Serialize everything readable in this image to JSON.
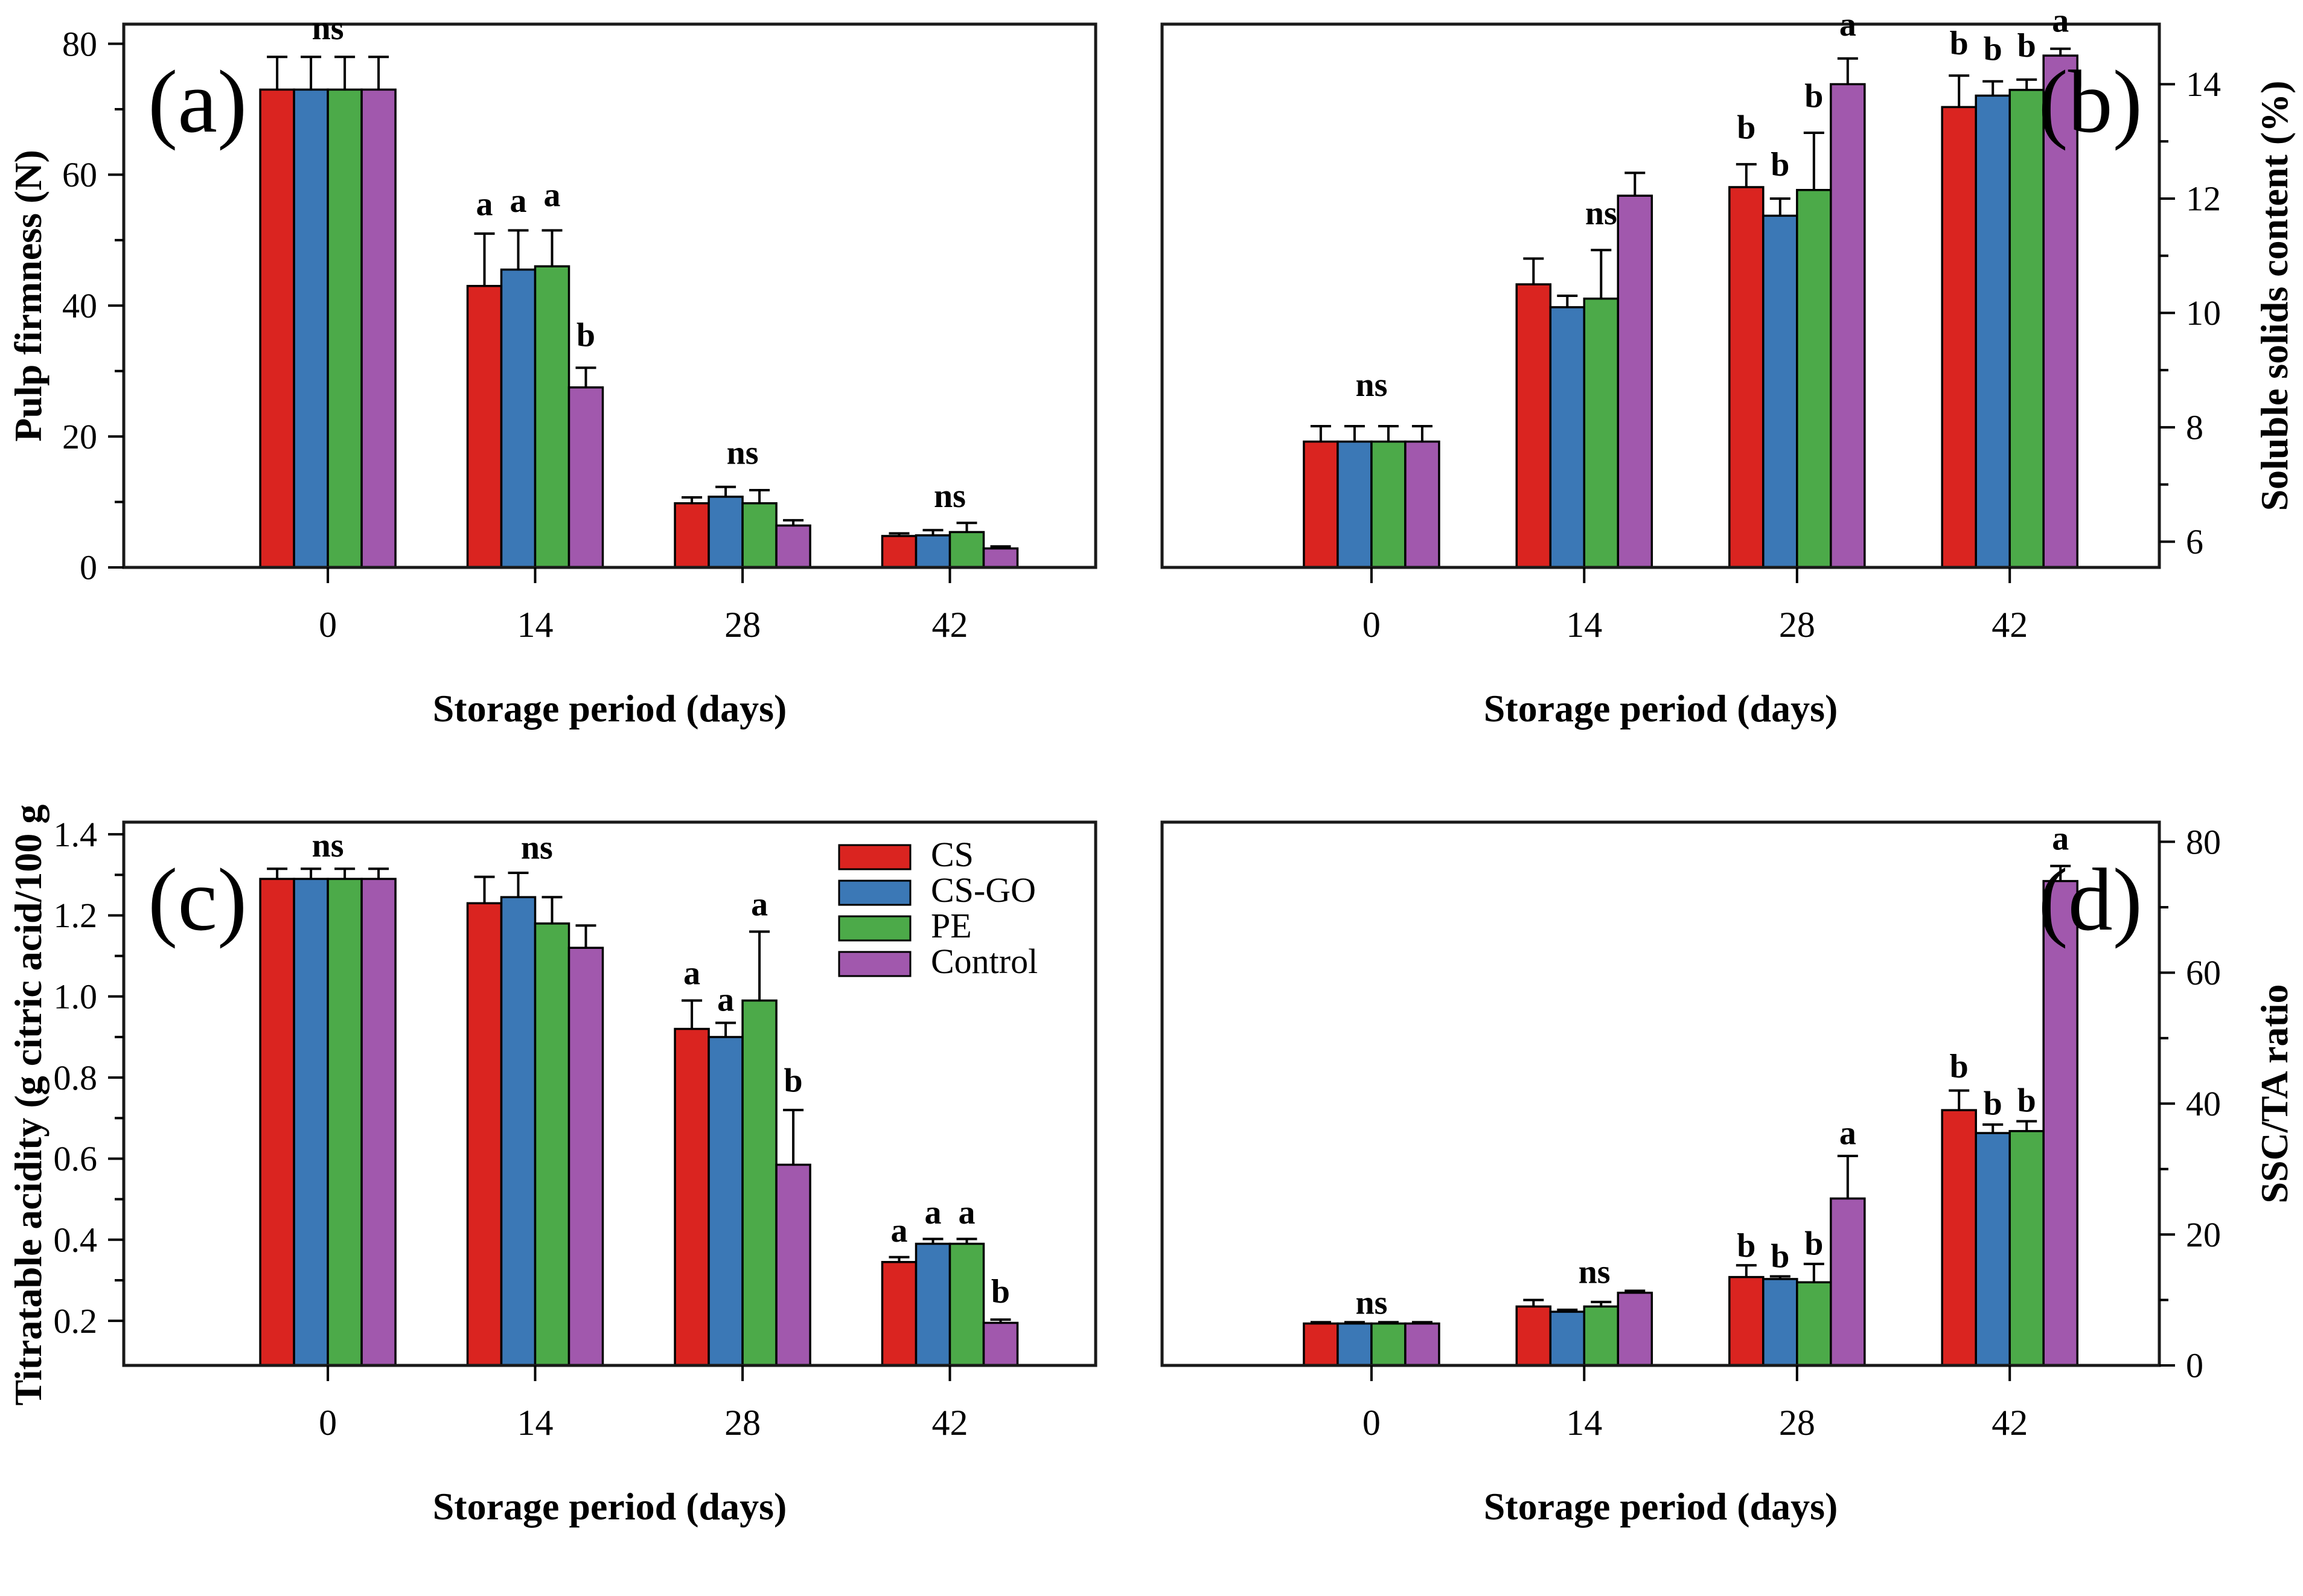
{
  "figure": {
    "background": "#ffffff",
    "frame_color": "#1a1a1a",
    "bar_edge_color": "#000000",
    "legend": {
      "items": [
        {
          "label": "CS",
          "color": "#da2420"
        },
        {
          "label": "CS-GO",
          "color": "#3b78b6"
        },
        {
          "label": "PE",
          "color": "#4caa49"
        },
        {
          "label": "Control",
          "color": "#a158ad"
        }
      ]
    }
  },
  "chart_data": [
    {
      "id": "a",
      "panel_label": "(a)",
      "type": "bar",
      "title": "",
      "xlabel": "Storage period (days)",
      "ylabel": "Pulp firmness (N)",
      "y_side": "left",
      "categories": [
        "0",
        "14",
        "28",
        "42"
      ],
      "ylim": [
        0,
        83
      ],
      "yticks": [
        0,
        20,
        40,
        60,
        80
      ],
      "ytick_labels": [
        "0",
        "20",
        "40",
        "60",
        "80"
      ],
      "yticks_minor": [
        10,
        30,
        50,
        70
      ],
      "grid": false,
      "series": [
        {
          "name": "CS",
          "values": [
            73,
            43,
            9.8,
            4.8
          ],
          "errors": [
            5,
            8,
            0.9,
            0.4
          ]
        },
        {
          "name": "CS-GO",
          "values": [
            73,
            45.5,
            10.8,
            4.9
          ],
          "errors": [
            5,
            6,
            1.5,
            0.8
          ]
        },
        {
          "name": "PE",
          "values": [
            73,
            46,
            9.8,
            5.4
          ],
          "errors": [
            5,
            5.5,
            2.0,
            1.4
          ]
        },
        {
          "name": "Control",
          "values": [
            73,
            27.5,
            6.4,
            2.9
          ],
          "errors": [
            5,
            3,
            0.8,
            0.3
          ]
        }
      ],
      "annotations": [
        {
          "text": "ns",
          "group": 0,
          "bar": 1.5,
          "y": 80.7
        },
        {
          "text": "a",
          "group": 1,
          "bar": 0,
          "y": 53.8
        },
        {
          "text": "a",
          "group": 1,
          "bar": 1,
          "y": 54.3
        },
        {
          "text": "a",
          "group": 1,
          "bar": 2,
          "y": 55.2
        },
        {
          "text": "b",
          "group": 1,
          "bar": 3,
          "y": 33.8
        },
        {
          "text": "ns",
          "group": 2,
          "bar": 1.5,
          "y": 15.8
        },
        {
          "text": "ns",
          "group": 3,
          "bar": 1.5,
          "y": 9.2
        }
      ],
      "show_legend": false
    },
    {
      "id": "b",
      "panel_label": "(b)",
      "type": "bar",
      "title": "",
      "xlabel": "Storage period (days)",
      "ylabel": "Soluble solids content (%)",
      "y_side": "right",
      "categories": [
        "0",
        "14",
        "28",
        "42"
      ],
      "ylim": [
        5.55,
        15.05
      ],
      "yticks": [
        6,
        8,
        10,
        12,
        14
      ],
      "ytick_labels": [
        "6",
        "8",
        "10",
        "12",
        "14"
      ],
      "yticks_minor": [
        7,
        9,
        11,
        13
      ],
      "grid": false,
      "series": [
        {
          "name": "CS",
          "values": [
            7.75,
            10.5,
            12.2,
            13.6
          ],
          "errors": [
            0.27,
            0.45,
            0.4,
            0.55
          ]
        },
        {
          "name": "CS-GO",
          "values": [
            7.75,
            10.1,
            11.7,
            13.8
          ],
          "errors": [
            0.27,
            0.2,
            0.3,
            0.25
          ]
        },
        {
          "name": "PE",
          "values": [
            7.75,
            10.25,
            12.15,
            13.9
          ],
          "errors": [
            0.27,
            0.85,
            1.0,
            0.18
          ]
        },
        {
          "name": "Control",
          "values": [
            7.75,
            12.05,
            14.0,
            14.5
          ],
          "errors": [
            0.27,
            0.4,
            0.45,
            0.12
          ]
        }
      ],
      "annotations": [
        {
          "text": "ns",
          "group": 0,
          "bar": 1.5,
          "y": 8.55
        },
        {
          "text": "ns",
          "group": 1,
          "bar": 2.0,
          "y": 11.55
        },
        {
          "text": "b",
          "group": 2,
          "bar": 0,
          "y": 13.05
        },
        {
          "text": "b",
          "group": 2,
          "bar": 1,
          "y": 12.4
        },
        {
          "text": "b",
          "group": 2,
          "bar": 2,
          "y": 13.6
        },
        {
          "text": "a",
          "group": 2,
          "bar": 3,
          "y": 14.85
        },
        {
          "text": "b",
          "group": 3,
          "bar": 0,
          "y": 14.52
        },
        {
          "text": "b",
          "group": 3,
          "bar": 1,
          "y": 14.42
        },
        {
          "text": "b",
          "group": 3,
          "bar": 2,
          "y": 14.48
        },
        {
          "text": "a",
          "group": 3,
          "bar": 3,
          "y": 14.92
        }
      ],
      "show_legend": false
    },
    {
      "id": "c",
      "panel_label": "(c)",
      "type": "bar",
      "title": "",
      "xlabel": "Storage period (days)",
      "ylabel": "Titratable acidity (g citric acid/100 g )",
      "y_side": "left",
      "categories": [
        "0",
        "14",
        "28",
        "42"
      ],
      "ylim": [
        0.09,
        1.43
      ],
      "yticks": [
        0.2,
        0.4,
        0.6,
        0.8,
        1.0,
        1.2,
        1.4
      ],
      "ytick_labels": [
        "0.2",
        "0.4",
        "0.6",
        "0.8",
        "1.0",
        "1.2",
        "1.4"
      ],
      "yticks_minor": [
        0.3,
        0.5,
        0.7,
        0.9,
        1.1,
        1.3
      ],
      "grid": false,
      "series": [
        {
          "name": "CS",
          "values": [
            1.29,
            1.23,
            0.92,
            0.345
          ],
          "errors": [
            0.025,
            0.065,
            0.07,
            0.012
          ]
        },
        {
          "name": "CS-GO",
          "values": [
            1.29,
            1.245,
            0.9,
            0.39
          ],
          "errors": [
            0.025,
            0.06,
            0.035,
            0.012
          ]
        },
        {
          "name": "PE",
          "values": [
            1.29,
            1.18,
            0.99,
            0.39
          ],
          "errors": [
            0.025,
            0.065,
            0.17,
            0.012
          ]
        },
        {
          "name": "Control",
          "values": [
            1.29,
            1.12,
            0.585,
            0.195
          ],
          "errors": [
            0.025,
            0.055,
            0.135,
            0.008
          ]
        }
      ],
      "annotations": [
        {
          "text": "ns",
          "group": 0,
          "bar": 1.5,
          "y": 1.345
        },
        {
          "text": "ns",
          "group": 1,
          "bar": 1.55,
          "y": 1.34
        },
        {
          "text": "a",
          "group": 2,
          "bar": 0,
          "y": 1.03
        },
        {
          "text": "a",
          "group": 2,
          "bar": 1,
          "y": 0.965
        },
        {
          "text": "a",
          "group": 2,
          "bar": 2,
          "y": 1.2
        },
        {
          "text": "b",
          "group": 2,
          "bar": 3,
          "y": 0.765
        },
        {
          "text": "a",
          "group": 3,
          "bar": 0,
          "y": 0.395
        },
        {
          "text": "a",
          "group": 3,
          "bar": 1,
          "y": 0.44
        },
        {
          "text": "a",
          "group": 3,
          "bar": 2,
          "y": 0.44
        },
        {
          "text": "b",
          "group": 3,
          "bar": 3,
          "y": 0.245
        }
      ],
      "show_legend": true
    },
    {
      "id": "d",
      "panel_label": "(d)",
      "type": "bar",
      "title": "",
      "xlabel": "Storage period (days)",
      "ylabel": "SSC/TA ratio",
      "y_side": "right",
      "categories": [
        "0",
        "14",
        "28",
        "42"
      ],
      "ylim": [
        0,
        83
      ],
      "yticks": [
        0,
        20,
        40,
        60,
        80
      ],
      "ytick_labels": [
        "0",
        "20",
        "40",
        "60",
        "80"
      ],
      "yticks_minor": [
        10,
        30,
        50,
        70
      ],
      "grid": false,
      "series": [
        {
          "name": "CS",
          "values": [
            6.4,
            9.0,
            13.5,
            39
          ],
          "errors": [
            0.2,
            1.0,
            1.8,
            3.0
          ]
        },
        {
          "name": "CS-GO",
          "values": [
            6.4,
            8.2,
            13.2,
            35.5
          ],
          "errors": [
            0.2,
            0.3,
            0.4,
            1.3
          ]
        },
        {
          "name": "PE",
          "values": [
            6.4,
            9.0,
            12.7,
            35.8
          ],
          "errors": [
            0.2,
            0.7,
            2.8,
            1.5
          ]
        },
        {
          "name": "Control",
          "values": [
            6.4,
            11.1,
            25.5,
            74
          ],
          "errors": [
            0.2,
            0.3,
            6.5,
            2.3
          ]
        }
      ],
      "annotations": [
        {
          "text": "ns",
          "group": 0,
          "bar": 1.5,
          "y": 7.9
        },
        {
          "text": "ns",
          "group": 1,
          "bar": 1.8,
          "y": 12.6
        },
        {
          "text": "b",
          "group": 2,
          "bar": 0,
          "y": 16.6
        },
        {
          "text": "b",
          "group": 2,
          "bar": 1,
          "y": 15.0
        },
        {
          "text": "b",
          "group": 2,
          "bar": 2,
          "y": 16.9
        },
        {
          "text": "a",
          "group": 2,
          "bar": 3,
          "y": 33.8
        },
        {
          "text": "b",
          "group": 3,
          "bar": 0,
          "y": 44
        },
        {
          "text": "b",
          "group": 3,
          "bar": 1,
          "y": 38.3
        },
        {
          "text": "b",
          "group": 3,
          "bar": 2,
          "y": 38.8
        },
        {
          "text": "a",
          "group": 3,
          "bar": 3,
          "y": 78.8
        }
      ],
      "show_legend": false
    }
  ]
}
